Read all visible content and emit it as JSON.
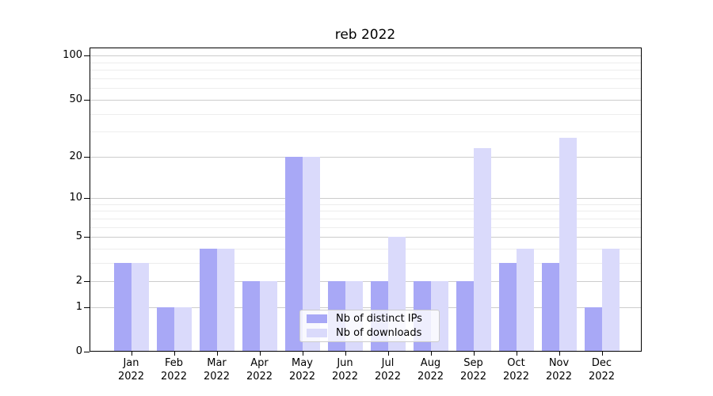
{
  "chart_data": {
    "type": "bar",
    "title": "reb 2022",
    "categories": [
      "Jan",
      "Feb",
      "Mar",
      "Apr",
      "May",
      "Jun",
      "Jul",
      "Aug",
      "Sep",
      "Oct",
      "Nov",
      "Dec"
    ],
    "x_tick_year": "2022",
    "series": [
      {
        "name": "Nb of distinct IPs",
        "color": "#a8a8f6",
        "values": [
          3,
          1,
          4,
          2,
          20,
          2,
          2,
          2,
          2,
          3,
          3,
          1
        ]
      },
      {
        "name": "Nb of downloads",
        "color": "#dadafb",
        "values": [
          3,
          1,
          4,
          2,
          20,
          2,
          5,
          2,
          23,
          4,
          27,
          4
        ]
      }
    ],
    "yscale": "log1p",
    "ylim": [
      0,
      114
    ],
    "y_axis_ticks": [
      0,
      1,
      2,
      5,
      10,
      20,
      50,
      100
    ],
    "y_minor_gridlines": [
      3,
      4,
      6,
      7,
      8,
      9,
      30,
      40,
      60,
      70,
      80,
      90
    ],
    "grid": true,
    "legend_position": "lower center",
    "colors": {
      "background": "#ffffff",
      "axis": "#000000",
      "major_grid": "#cccccc",
      "minor_grid": "#ededed"
    }
  }
}
